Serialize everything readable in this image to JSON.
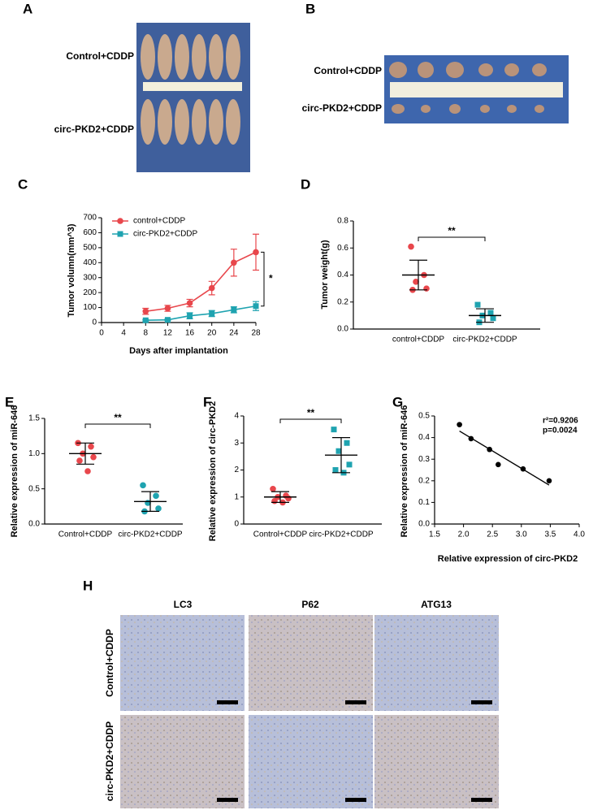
{
  "panel_letters": [
    "A",
    "B",
    "C",
    "D",
    "E",
    "F",
    "G",
    "H"
  ],
  "photo_a": {
    "rows": [
      "Control+CDDP",
      "circ-PKD2+CDDP"
    ]
  },
  "photo_b": {
    "rows": [
      "Control+CDDP",
      "circ-PKD2+CDDP"
    ]
  },
  "photo_h": {
    "columns": [
      "LC3",
      "P62",
      "ATG13"
    ],
    "rows": [
      "Control+CDDP",
      "circ-PKD2+CDDP"
    ]
  },
  "chart_data": [
    {
      "type": "line",
      "xlabel": "Days after implantation",
      "ylabel": "Tumor volumn(mm^3)",
      "x": [
        8,
        12,
        16,
        20,
        24,
        28
      ],
      "xlim": [
        0,
        28
      ],
      "xticks": [
        0,
        4,
        8,
        12,
        16,
        20,
        24,
        28
      ],
      "ylim": [
        0,
        700
      ],
      "yticks": [
        0,
        100,
        200,
        300,
        400,
        500,
        600,
        700
      ],
      "series": [
        {
          "name": "control+CDDP",
          "color": "#e8474c",
          "marker": "circle",
          "values": [
            75,
            95,
            130,
            230,
            400,
            470
          ],
          "errors": [
            20,
            20,
            25,
            45,
            90,
            120
          ]
        },
        {
          "name": "circ-PKD2+CDDP",
          "color": "#1fa3b0",
          "marker": "square",
          "values": [
            15,
            18,
            45,
            60,
            85,
            110
          ],
          "errors": [
            5,
            5,
            20,
            20,
            20,
            30
          ]
        }
      ],
      "annotation": "*"
    },
    {
      "type": "strip",
      "ylabel": "Tumor weight(g)",
      "categories": [
        "control+CDDP",
        "circ-PKD2+CDDP"
      ],
      "ylim": [
        0,
        0.8
      ],
      "yticks": [
        {
          "value": 0,
          "label": "0.0"
        },
        0.2,
        0.4,
        0.6,
        0.8
      ],
      "series": [
        {
          "color": "#e8474c",
          "marker": "circle",
          "values": [
            0.61,
            0.4,
            0.35,
            0.3,
            0.29
          ],
          "mean": 0.4,
          "sd": 0.11
        },
        {
          "color": "#1fa3b0",
          "marker": "square",
          "values": [
            0.18,
            0.12,
            0.1,
            0.08,
            0.05
          ],
          "mean": 0.1,
          "sd": 0.05
        }
      ],
      "annotation": "**"
    },
    {
      "type": "strip",
      "ylabel": "Relative expression of miR-646",
      "categories": [
        "Control+CDDP",
        "circ-PKD2+CDDP"
      ],
      "ylim": [
        0,
        1.5
      ],
      "yticks": [
        {
          "value": 0,
          "label": "0.0"
        },
        0.5,
        {
          "value": 1,
          "label": "1.0"
        },
        1.5
      ],
      "series": [
        {
          "color": "#e8474c",
          "marker": "circle",
          "values": [
            1.15,
            1.1,
            1.0,
            0.95,
            0.9,
            0.75
          ],
          "mean": 1.0,
          "sd": 0.15
        },
        {
          "color": "#1fa3b0",
          "marker": "circle",
          "values": [
            0.55,
            0.4,
            0.3,
            0.22,
            0.18
          ],
          "mean": 0.32,
          "sd": 0.14
        }
      ],
      "annotation": "**"
    },
    {
      "type": "strip",
      "ylabel": "Relative expression of circ-PKD2",
      "categories": [
        "Control+CDDP",
        "circ-PKD2+CDDP"
      ],
      "ylim": [
        0,
        4
      ],
      "yticks": [
        0,
        1,
        2,
        3,
        4
      ],
      "series": [
        {
          "color": "#e8474c",
          "marker": "circle",
          "values": [
            1.3,
            1.05,
            1.0,
            0.95,
            0.85,
            0.8
          ],
          "mean": 1.0,
          "sd": 0.2
        },
        {
          "color": "#1fa3b0",
          "marker": "square",
          "values": [
            3.5,
            3.0,
            2.7,
            2.2,
            2.0,
            1.9
          ],
          "mean": 2.55,
          "sd": 0.65
        }
      ],
      "annotation": "**"
    },
    {
      "type": "scatter",
      "xlabel": "Relative expression of circ-PKD2",
      "ylabel": "Relative expression of miR-646",
      "x": [
        1.93,
        2.13,
        2.45,
        2.6,
        3.03,
        3.48
      ],
      "values": [
        0.46,
        0.395,
        0.345,
        0.275,
        0.255,
        0.2
      ],
      "color": "#000000",
      "xlim": [
        1.5,
        4
      ],
      "xticks": [
        1.5,
        {
          "value": 2,
          "label": "2.0"
        },
        2.5,
        {
          "value": 3,
          "label": "3.0"
        },
        3.5,
        {
          "value": 4,
          "label": "4.0"
        }
      ],
      "ylim": [
        0,
        0.5
      ],
      "yticks": [
        {
          "value": 0,
          "label": "0.0"
        },
        0.1,
        0.2,
        0.3,
        0.4,
        0.5
      ],
      "annotations": [
        "r²=0.9206",
        "p=0.0024"
      ]
    }
  ]
}
